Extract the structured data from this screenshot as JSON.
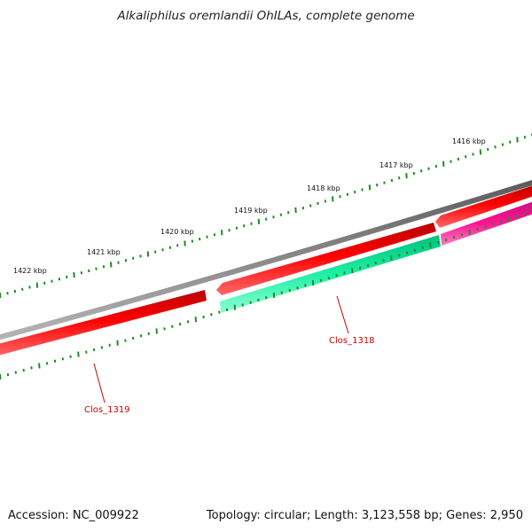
{
  "title": "Alkaliphilus oremlandii OhILAs, complete genome",
  "footer": {
    "accession": "Accession: NC_009922",
    "stats": "Topology: circular; Length: 3,123,558 bp; Genes: 2,950"
  },
  "ticks": [
    "1416 kbp",
    "1417 kbp",
    "1418 kbp",
    "1419 kbp",
    "1420 kbp",
    "1421 kbp",
    "1422 kbp"
  ],
  "genes": [
    {
      "name": "Clos_1318",
      "strand": "forward",
      "color": "#ff0000"
    },
    {
      "name": "Clos_1319",
      "strand": "forward",
      "color": "#ff0000"
    }
  ],
  "colors": {
    "backbone": "#808080",
    "forward_cds": "#ff0000",
    "reverse_cds_green": "#1df0a5",
    "reverse_cds_pink": "#ff1493",
    "tick": "#228b22",
    "gene_label": "#cc0000"
  }
}
